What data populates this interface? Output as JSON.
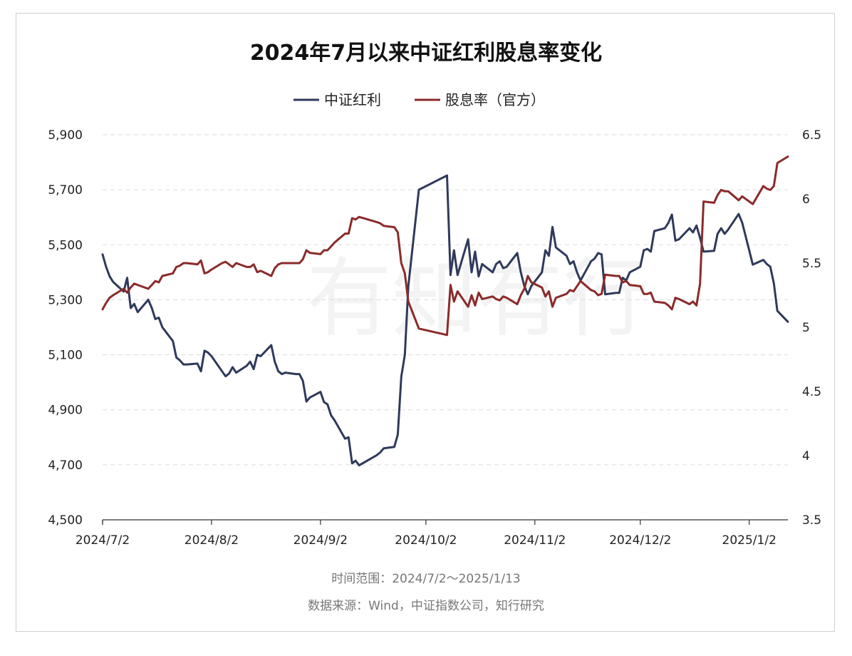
{
  "chart_data": {
    "type": "line",
    "title": "2024年7月以来中证红利股息率变化",
    "legend": {
      "placement": "top-center"
    },
    "grid": true,
    "x_ticks": [
      "2024/7/2",
      "2024/8/2",
      "2024/9/2",
      "2024/10/2",
      "2024/11/2",
      "2024/12/2",
      "2025/1/2"
    ],
    "x_range": [
      "2024-07-02",
      "2025-01-13"
    ],
    "y_left": {
      "ylim": [
        4500,
        5900
      ],
      "ticks": [
        "4,500",
        "4,700",
        "4,900",
        "5,100",
        "5,300",
        "5,500",
        "5,700",
        "5,900"
      ]
    },
    "y_right": {
      "ylim": [
        3.5,
        6.5
      ],
      "ticks": [
        "3.5",
        "4",
        "4.5",
        "5",
        "5.5",
        "6",
        "6.5"
      ]
    },
    "series": [
      {
        "name": "中证红利",
        "axis": "left",
        "color": "#2f3a5b",
        "points": [
          [
            "2024-07-02",
            5465
          ],
          [
            "2024-07-03",
            5420
          ],
          [
            "2024-07-04",
            5385
          ],
          [
            "2024-07-05",
            5365
          ],
          [
            "2024-07-08",
            5330
          ],
          [
            "2024-07-09",
            5380
          ],
          [
            "2024-07-10",
            5270
          ],
          [
            "2024-07-11",
            5285
          ],
          [
            "2024-07-12",
            5255
          ],
          [
            "2024-07-15",
            5300
          ],
          [
            "2024-07-16",
            5270
          ],
          [
            "2024-07-17",
            5230
          ],
          [
            "2024-07-18",
            5235
          ],
          [
            "2024-07-19",
            5200
          ],
          [
            "2024-07-22",
            5150
          ],
          [
            "2024-07-23",
            5090
          ],
          [
            "2024-07-24",
            5080
          ],
          [
            "2024-07-25",
            5065
          ],
          [
            "2024-07-26",
            5065
          ],
          [
            "2024-07-29",
            5068
          ],
          [
            "2024-07-30",
            5040
          ],
          [
            "2024-07-31",
            5115
          ],
          [
            "2024-08-01",
            5108
          ],
          [
            "2024-08-02",
            5095
          ],
          [
            "2024-08-05",
            5040
          ],
          [
            "2024-08-06",
            5022
          ],
          [
            "2024-08-07",
            5032
          ],
          [
            "2024-08-08",
            5055
          ],
          [
            "2024-08-09",
            5035
          ],
          [
            "2024-08-12",
            5060
          ],
          [
            "2024-08-13",
            5075
          ],
          [
            "2024-08-14",
            5048
          ],
          [
            "2024-08-15",
            5100
          ],
          [
            "2024-08-16",
            5095
          ],
          [
            "2024-08-19",
            5135
          ],
          [
            "2024-08-20",
            5075
          ],
          [
            "2024-08-21",
            5040
          ],
          [
            "2024-08-22",
            5030
          ],
          [
            "2024-08-23",
            5035
          ],
          [
            "2024-08-26",
            5030
          ],
          [
            "2024-08-27",
            5030
          ],
          [
            "2024-08-28",
            5005
          ],
          [
            "2024-08-29",
            4930
          ],
          [
            "2024-08-30",
            4945
          ],
          [
            "2024-09-02",
            4965
          ],
          [
            "2024-09-03",
            4928
          ],
          [
            "2024-09-04",
            4920
          ],
          [
            "2024-09-05",
            4880
          ],
          [
            "2024-09-06",
            4862
          ],
          [
            "2024-09-09",
            4795
          ],
          [
            "2024-09-10",
            4800
          ],
          [
            "2024-09-11",
            4705
          ],
          [
            "2024-09-12",
            4715
          ],
          [
            "2024-09-13",
            4698
          ],
          [
            "2024-09-18",
            4735
          ],
          [
            "2024-09-19",
            4745
          ],
          [
            "2024-09-20",
            4760
          ],
          [
            "2024-09-23",
            4765
          ],
          [
            "2024-09-24",
            4810
          ],
          [
            "2024-09-25",
            5020
          ],
          [
            "2024-09-26",
            5100
          ],
          [
            "2024-09-27",
            5350
          ],
          [
            "2024-09-30",
            5700
          ],
          [
            "2024-10-08",
            5752
          ],
          [
            "2024-10-09",
            5390
          ],
          [
            "2024-10-10",
            5480
          ],
          [
            "2024-10-11",
            5390
          ],
          [
            "2024-10-14",
            5520
          ],
          [
            "2024-10-15",
            5400
          ],
          [
            "2024-10-16",
            5475
          ],
          [
            "2024-10-17",
            5385
          ],
          [
            "2024-10-18",
            5430
          ],
          [
            "2024-10-21",
            5400
          ],
          [
            "2024-10-22",
            5430
          ],
          [
            "2024-10-23",
            5440
          ],
          [
            "2024-10-24",
            5415
          ],
          [
            "2024-10-25",
            5420
          ],
          [
            "2024-10-28",
            5470
          ],
          [
            "2024-10-29",
            5400
          ],
          [
            "2024-10-30",
            5350
          ],
          [
            "2024-10-31",
            5320
          ],
          [
            "2024-11-01",
            5350
          ],
          [
            "2024-11-04",
            5400
          ],
          [
            "2024-11-05",
            5480
          ],
          [
            "2024-11-06",
            5460
          ],
          [
            "2024-11-07",
            5565
          ],
          [
            "2024-11-08",
            5490
          ],
          [
            "2024-11-11",
            5460
          ],
          [
            "2024-11-12",
            5430
          ],
          [
            "2024-11-13",
            5440
          ],
          [
            "2024-11-14",
            5400
          ],
          [
            "2024-11-15",
            5370
          ],
          [
            "2024-11-18",
            5440
          ],
          [
            "2024-11-19",
            5450
          ],
          [
            "2024-11-20",
            5470
          ],
          [
            "2024-11-21",
            5465
          ],
          [
            "2024-11-22",
            5320
          ],
          [
            "2024-11-25",
            5325
          ],
          [
            "2024-11-26",
            5325
          ],
          [
            "2024-11-27",
            5380
          ],
          [
            "2024-11-28",
            5370
          ],
          [
            "2024-11-29",
            5400
          ],
          [
            "2024-12-02",
            5420
          ],
          [
            "2024-12-03",
            5480
          ],
          [
            "2024-12-04",
            5485
          ],
          [
            "2024-12-05",
            5475
          ],
          [
            "2024-12-06",
            5550
          ],
          [
            "2024-12-09",
            5560
          ],
          [
            "2024-12-10",
            5580
          ],
          [
            "2024-12-11",
            5610
          ],
          [
            "2024-12-12",
            5515
          ],
          [
            "2024-12-13",
            5520
          ],
          [
            "2024-12-16",
            5560
          ],
          [
            "2024-12-17",
            5545
          ],
          [
            "2024-12-18",
            5570
          ],
          [
            "2024-12-19",
            5525
          ],
          [
            "2024-12-20",
            5475
          ],
          [
            "2024-12-23",
            5478
          ],
          [
            "2024-12-24",
            5540
          ],
          [
            "2024-12-25",
            5560
          ],
          [
            "2024-12-26",
            5540
          ],
          [
            "2024-12-27",
            5555
          ],
          [
            "2024-12-30",
            5612
          ],
          [
            "2024-12-31",
            5580
          ],
          [
            "2025-01-02",
            5480
          ],
          [
            "2025-01-03",
            5428
          ],
          [
            "2025-01-06",
            5445
          ],
          [
            "2025-01-07",
            5430
          ],
          [
            "2025-01-08",
            5420
          ],
          [
            "2025-01-09",
            5360
          ],
          [
            "2025-01-10",
            5260
          ],
          [
            "2025-01-13",
            5220
          ]
        ]
      },
      {
        "name": "股息率（官方）",
        "axis": "right",
        "color": "#8b2a2a",
        "points": [
          [
            "2024-07-02",
            5.14
          ],
          [
            "2024-07-03",
            5.19
          ],
          [
            "2024-07-04",
            5.23
          ],
          [
            "2024-07-05",
            5.25
          ],
          [
            "2024-07-08",
            5.3
          ],
          [
            "2024-07-09",
            5.27
          ],
          [
            "2024-07-10",
            5.31
          ],
          [
            "2024-07-11",
            5.34
          ],
          [
            "2024-07-12",
            5.33
          ],
          [
            "2024-07-15",
            5.3
          ],
          [
            "2024-07-16",
            5.33
          ],
          [
            "2024-07-17",
            5.36
          ],
          [
            "2024-07-18",
            5.35
          ],
          [
            "2024-07-19",
            5.4
          ],
          [
            "2024-07-22",
            5.42
          ],
          [
            "2024-07-23",
            5.47
          ],
          [
            "2024-07-24",
            5.48
          ],
          [
            "2024-07-25",
            5.5
          ],
          [
            "2024-07-26",
            5.5
          ],
          [
            "2024-07-29",
            5.49
          ],
          [
            "2024-07-30",
            5.52
          ],
          [
            "2024-07-31",
            5.42
          ],
          [
            "2024-08-01",
            5.43
          ],
          [
            "2024-08-02",
            5.45
          ],
          [
            "2024-08-05",
            5.5
          ],
          [
            "2024-08-06",
            5.51
          ],
          [
            "2024-08-07",
            5.49
          ],
          [
            "2024-08-08",
            5.47
          ],
          [
            "2024-08-09",
            5.5
          ],
          [
            "2024-08-12",
            5.47
          ],
          [
            "2024-08-13",
            5.47
          ],
          [
            "2024-08-14",
            5.49
          ],
          [
            "2024-08-15",
            5.43
          ],
          [
            "2024-08-16",
            5.44
          ],
          [
            "2024-08-19",
            5.4
          ],
          [
            "2024-08-20",
            5.46
          ],
          [
            "2024-08-21",
            5.49
          ],
          [
            "2024-08-22",
            5.5
          ],
          [
            "2024-08-23",
            5.5
          ],
          [
            "2024-08-26",
            5.5
          ],
          [
            "2024-08-27",
            5.5
          ],
          [
            "2024-08-28",
            5.53
          ],
          [
            "2024-08-29",
            5.6
          ],
          [
            "2024-08-30",
            5.58
          ],
          [
            "2024-09-02",
            5.57
          ],
          [
            "2024-09-03",
            5.6
          ],
          [
            "2024-09-04",
            5.6
          ],
          [
            "2024-09-05",
            5.63
          ],
          [
            "2024-09-06",
            5.66
          ],
          [
            "2024-09-09",
            5.73
          ],
          [
            "2024-09-10",
            5.73
          ],
          [
            "2024-09-11",
            5.85
          ],
          [
            "2024-09-12",
            5.84
          ],
          [
            "2024-09-13",
            5.86
          ],
          [
            "2024-09-18",
            5.82
          ],
          [
            "2024-09-19",
            5.81
          ],
          [
            "2024-09-20",
            5.79
          ],
          [
            "2024-09-23",
            5.78
          ],
          [
            "2024-09-24",
            5.74
          ],
          [
            "2024-09-25",
            5.5
          ],
          [
            "2024-09-26",
            5.42
          ],
          [
            "2024-09-27",
            5.2
          ],
          [
            "2024-09-30",
            4.99
          ],
          [
            "2024-10-08",
            4.94
          ],
          [
            "2024-10-09",
            5.33
          ],
          [
            "2024-10-10",
            5.2
          ],
          [
            "2024-10-11",
            5.28
          ],
          [
            "2024-10-14",
            5.16
          ],
          [
            "2024-10-15",
            5.25
          ],
          [
            "2024-10-16",
            5.17
          ],
          [
            "2024-10-17",
            5.27
          ],
          [
            "2024-10-18",
            5.22
          ],
          [
            "2024-10-21",
            5.24
          ],
          [
            "2024-10-22",
            5.22
          ],
          [
            "2024-10-23",
            5.21
          ],
          [
            "2024-10-24",
            5.24
          ],
          [
            "2024-10-25",
            5.23
          ],
          [
            "2024-10-28",
            5.18
          ],
          [
            "2024-10-29",
            5.25
          ],
          [
            "2024-10-30",
            5.3
          ],
          [
            "2024-10-31",
            5.4
          ],
          [
            "2024-11-01",
            5.35
          ],
          [
            "2024-11-04",
            5.31
          ],
          [
            "2024-11-05",
            5.24
          ],
          [
            "2024-11-06",
            5.28
          ],
          [
            "2024-11-07",
            5.16
          ],
          [
            "2024-11-08",
            5.23
          ],
          [
            "2024-11-11",
            5.26
          ],
          [
            "2024-11-12",
            5.29
          ],
          [
            "2024-11-13",
            5.28
          ],
          [
            "2024-11-14",
            5.32
          ],
          [
            "2024-11-15",
            5.36
          ],
          [
            "2024-11-18",
            5.29
          ],
          [
            "2024-11-19",
            5.28
          ],
          [
            "2024-11-20",
            5.25
          ],
          [
            "2024-11-21",
            5.26
          ],
          [
            "2024-11-22",
            5.41
          ],
          [
            "2024-11-25",
            5.4
          ],
          [
            "2024-11-26",
            5.4
          ],
          [
            "2024-11-27",
            5.35
          ],
          [
            "2024-11-28",
            5.36
          ],
          [
            "2024-11-29",
            5.33
          ],
          [
            "2024-12-02",
            5.32
          ],
          [
            "2024-12-03",
            5.26
          ],
          [
            "2024-12-04",
            5.26
          ],
          [
            "2024-12-05",
            5.27
          ],
          [
            "2024-12-06",
            5.2
          ],
          [
            "2024-12-09",
            5.19
          ],
          [
            "2024-12-10",
            5.17
          ],
          [
            "2024-12-11",
            5.14
          ],
          [
            "2024-12-12",
            5.23
          ],
          [
            "2024-12-13",
            5.22
          ],
          [
            "2024-12-16",
            5.18
          ],
          [
            "2024-12-17",
            5.2
          ],
          [
            "2024-12-18",
            5.17
          ],
          [
            "2024-12-19",
            5.34
          ],
          [
            "2024-12-20",
            5.98
          ],
          [
            "2024-12-23",
            5.97
          ],
          [
            "2024-12-24",
            6.03
          ],
          [
            "2024-12-25",
            6.07
          ],
          [
            "2024-12-26",
            6.06
          ],
          [
            "2024-12-27",
            6.06
          ],
          [
            "2024-12-30",
            5.99
          ],
          [
            "2024-12-31",
            6.02
          ],
          [
            "2025-01-02",
            5.98
          ],
          [
            "2025-01-03",
            5.96
          ],
          [
            "2025-01-06",
            6.1
          ],
          [
            "2025-01-07",
            6.08
          ],
          [
            "2025-01-08",
            6.07
          ],
          [
            "2025-01-09",
            6.1
          ],
          [
            "2025-01-10",
            6.28
          ],
          [
            "2025-01-13",
            6.33
          ]
        ]
      }
    ]
  },
  "notes": {
    "time_range": "时间范围：2024/7/2～2025/1/13",
    "source": "数据来源：Wind，中证指数公司，知行研究"
  },
  "watermark": "有知有行"
}
